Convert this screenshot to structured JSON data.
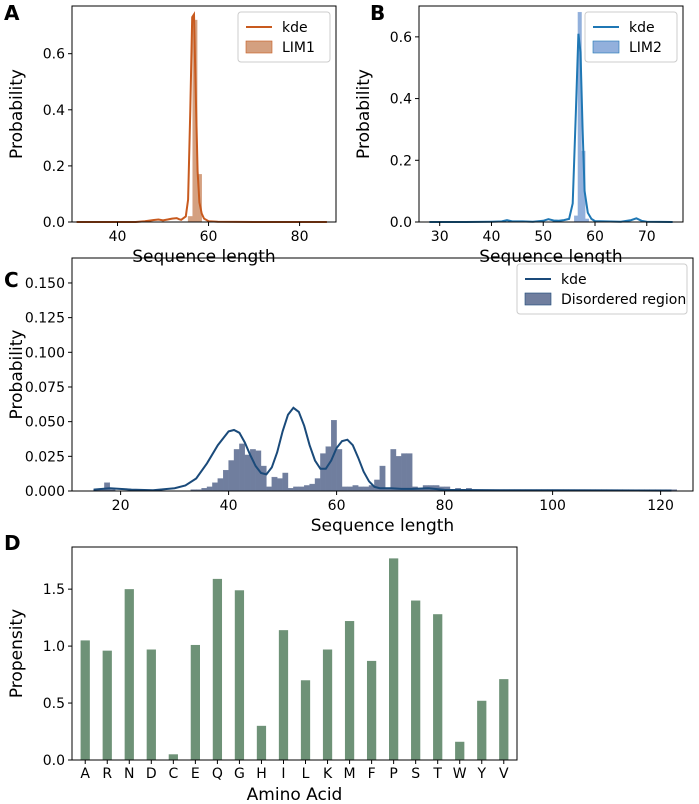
{
  "chart_data": [
    {
      "panel_letter": "A",
      "type": "histogram+kde",
      "xlabel": "Sequence length",
      "ylabel": "Probability",
      "xlim": [
        30,
        88
      ],
      "ylim": [
        0,
        0.77
      ],
      "xticks": [
        40,
        60,
        80
      ],
      "yticks": [
        0.0,
        0.2,
        0.4,
        0.6
      ],
      "ytick_labels": [
        "0.0",
        "0.2",
        "0.4",
        "0.6"
      ],
      "legend": [
        "kde",
        "LIM1"
      ],
      "bar_color": "#D4A080",
      "line_color": "#C85A1E",
      "bins": [
        {
          "x": 55.5,
          "width": 1,
          "value": 0.02
        },
        {
          "x": 56.5,
          "width": 1,
          "value": 0.72
        },
        {
          "x": 57.5,
          "width": 1,
          "value": 0.17
        }
      ],
      "kde": [
        [
          31,
          0
        ],
        [
          35,
          0
        ],
        [
          40,
          0
        ],
        [
          44,
          0
        ],
        [
          46,
          0.003
        ],
        [
          48,
          0.007
        ],
        [
          49,
          0.009
        ],
        [
          50,
          0.006
        ],
        [
          51,
          0.009
        ],
        [
          52,
          0.012
        ],
        [
          53,
          0.014
        ],
        [
          53.5,
          0.01
        ],
        [
          54,
          0.008
        ],
        [
          55,
          0.02
        ],
        [
          55.5,
          0.08
        ],
        [
          56,
          0.4
        ],
        [
          56.4,
          0.73
        ],
        [
          56.8,
          0.74
        ],
        [
          57.2,
          0.45
        ],
        [
          57.6,
          0.18
        ],
        [
          58,
          0.07
        ],
        [
          58.5,
          0.03
        ],
        [
          59,
          0.012
        ],
        [
          60,
          0.003
        ],
        [
          62,
          0.001
        ],
        [
          70,
          0
        ],
        [
          80,
          0
        ],
        [
          86,
          0
        ]
      ]
    },
    {
      "panel_letter": "B",
      "type": "histogram+kde",
      "xlabel": "Sequence length",
      "ylabel": "Probability",
      "xlim": [
        26,
        77
      ],
      "ylim": [
        0,
        0.7
      ],
      "xticks": [
        30,
        40,
        50,
        60,
        70
      ],
      "yticks": [
        0.0,
        0.2,
        0.4,
        0.6
      ],
      "ytick_labels": [
        "0.0",
        "0.2",
        "0.4",
        "0.6"
      ],
      "legend": [
        "kde",
        "LIM2"
      ],
      "bar_color": "#92B0DC",
      "line_color": "#1F77B4",
      "bins": [
        {
          "x": 56.0,
          "width": 0.7,
          "value": 0.02
        },
        {
          "x": 56.7,
          "width": 0.7,
          "value": 0.68
        },
        {
          "x": 57.4,
          "width": 0.7,
          "value": 0.23
        },
        {
          "x": 58.1,
          "width": 0.7,
          "value": 0.01
        }
      ],
      "kde": [
        [
          28,
          0
        ],
        [
          35,
          0
        ],
        [
          40,
          0.001
        ],
        [
          42,
          0.002
        ],
        [
          43,
          0.006
        ],
        [
          44,
          0.002
        ],
        [
          46,
          0.002
        ],
        [
          48,
          0.001
        ],
        [
          50,
          0.004
        ],
        [
          51,
          0.009
        ],
        [
          52,
          0.005
        ],
        [
          53,
          0.004
        ],
        [
          54,
          0.006
        ],
        [
          55,
          0.01
        ],
        [
          55.7,
          0.06
        ],
        [
          56.3,
          0.35
        ],
        [
          56.8,
          0.61
        ],
        [
          57.2,
          0.55
        ],
        [
          57.6,
          0.3
        ],
        [
          58.0,
          0.1
        ],
        [
          58.6,
          0.03
        ],
        [
          59.3,
          0.01
        ],
        [
          60,
          0.003
        ],
        [
          65,
          0.001
        ],
        [
          67,
          0.006
        ],
        [
          68,
          0.012
        ],
        [
          69,
          0.004
        ],
        [
          70,
          0.001
        ],
        [
          75,
          0
        ]
      ]
    },
    {
      "panel_letter": "C",
      "type": "histogram+kde",
      "xlabel": "Sequence length",
      "ylabel": "Probability",
      "xlim": [
        11,
        126
      ],
      "ylim": [
        0,
        0.168
      ],
      "xticks": [
        20,
        40,
        60,
        80,
        100,
        120
      ],
      "yticks": [
        0,
        0.025,
        0.05,
        0.075,
        0.1,
        0.125,
        0.15
      ],
      "ytick_labels": [
        "0.000",
        "0.025",
        "0.050",
        "0.075",
        "0.100",
        "0.125",
        "0.150"
      ],
      "legend": [
        "kde",
        "Disordered region"
      ],
      "bar_color": "#707E9E",
      "line_color": "#1A4A7A",
      "bin_start": 15,
      "bin_width": 1,
      "bin_values": [
        0.001,
        0.001,
        0.006,
        0.001,
        0,
        0,
        0,
        0,
        0,
        0,
        0,
        0,
        0,
        0,
        0,
        0,
        0,
        0,
        0.001,
        0.001,
        0.002,
        0.003,
        0.006,
        0.009,
        0.015,
        0.022,
        0.03,
        0.034,
        0.026,
        0.03,
        0.029,
        0.018,
        0.003,
        0.01,
        0.009,
        0.013,
        0.002,
        0.003,
        0.003,
        0.004,
        0.005,
        0.009,
        0.027,
        0.032,
        0.051,
        0.03,
        0.003,
        0.003,
        0.004,
        0.003,
        0.003,
        0.004,
        0.008,
        0.018,
        0.002,
        0.03,
        0.025,
        0.027,
        0.027,
        0.003,
        0.002,
        0.004,
        0.004,
        0.004,
        0.003,
        0.003,
        0.001,
        0.002,
        0.001,
        0.002,
        0.001,
        0.001,
        0.001,
        0.001,
        0.001,
        0.001,
        0.001,
        0.001,
        0.001,
        0.001,
        0.001,
        0.001,
        0.001,
        0.001,
        0.001,
        0.001,
        0.001,
        0.001,
        0.001,
        0.001,
        0.001,
        0.001,
        0.001,
        0.001,
        0.001,
        0.001,
        0.001,
        0.001,
        0.001,
        0.001,
        0.001,
        0.001,
        0.001,
        0.001,
        0.001,
        0.001,
        0.001,
        0.001
      ],
      "kde": [
        [
          15,
          0.001
        ],
        [
          18,
          0.002
        ],
        [
          22,
          0.001
        ],
        [
          26,
          0.0005
        ],
        [
          30,
          0.002
        ],
        [
          32,
          0.004
        ],
        [
          34,
          0.009
        ],
        [
          36,
          0.02
        ],
        [
          38,
          0.033
        ],
        [
          40,
          0.043
        ],
        [
          41,
          0.044
        ],
        [
          42,
          0.042
        ],
        [
          43,
          0.035
        ],
        [
          44,
          0.026
        ],
        [
          45,
          0.018
        ],
        [
          46,
          0.013
        ],
        [
          47,
          0.012
        ],
        [
          48,
          0.017
        ],
        [
          49,
          0.028
        ],
        [
          50,
          0.043
        ],
        [
          51,
          0.055
        ],
        [
          52,
          0.06
        ],
        [
          53,
          0.057
        ],
        [
          54,
          0.047
        ],
        [
          55,
          0.033
        ],
        [
          56,
          0.022
        ],
        [
          57,
          0.016
        ],
        [
          58,
          0.016
        ],
        [
          59,
          0.022
        ],
        [
          60,
          0.031
        ],
        [
          61,
          0.036
        ],
        [
          62,
          0.037
        ],
        [
          63,
          0.033
        ],
        [
          64,
          0.024
        ],
        [
          65,
          0.014
        ],
        [
          66,
          0.007
        ],
        [
          67,
          0.003
        ],
        [
          68,
          0.002
        ],
        [
          70,
          0.002
        ],
        [
          72,
          0.0015
        ],
        [
          74,
          0.0015
        ],
        [
          77,
          0.002
        ],
        [
          80,
          0.0008
        ],
        [
          90,
          0.0005
        ],
        [
          100,
          0.0006
        ],
        [
          110,
          0.0004
        ],
        [
          122,
          0.0003
        ]
      ]
    },
    {
      "panel_letter": "D",
      "type": "bar",
      "xlabel": "Amino Acid",
      "ylabel": "Propensity",
      "ylim": [
        0,
        1.87
      ],
      "yticks": [
        0.0,
        0.5,
        1.0,
        1.5
      ],
      "ytick_labels": [
        "0.0",
        "0.5",
        "1.0",
        "1.5"
      ],
      "bar_color": "#6E9277",
      "categories": [
        "A",
        "R",
        "N",
        "D",
        "C",
        "E",
        "Q",
        "G",
        "H",
        "I",
        "L",
        "K",
        "M",
        "F",
        "P",
        "S",
        "T",
        "W",
        "Y",
        "V"
      ],
      "values": [
        1.05,
        0.96,
        1.5,
        0.97,
        0.05,
        1.01,
        1.59,
        1.49,
        0.3,
        1.14,
        0.7,
        0.97,
        1.22,
        0.87,
        1.77,
        1.4,
        1.28,
        0.16,
        0.52,
        0.71
      ]
    }
  ]
}
